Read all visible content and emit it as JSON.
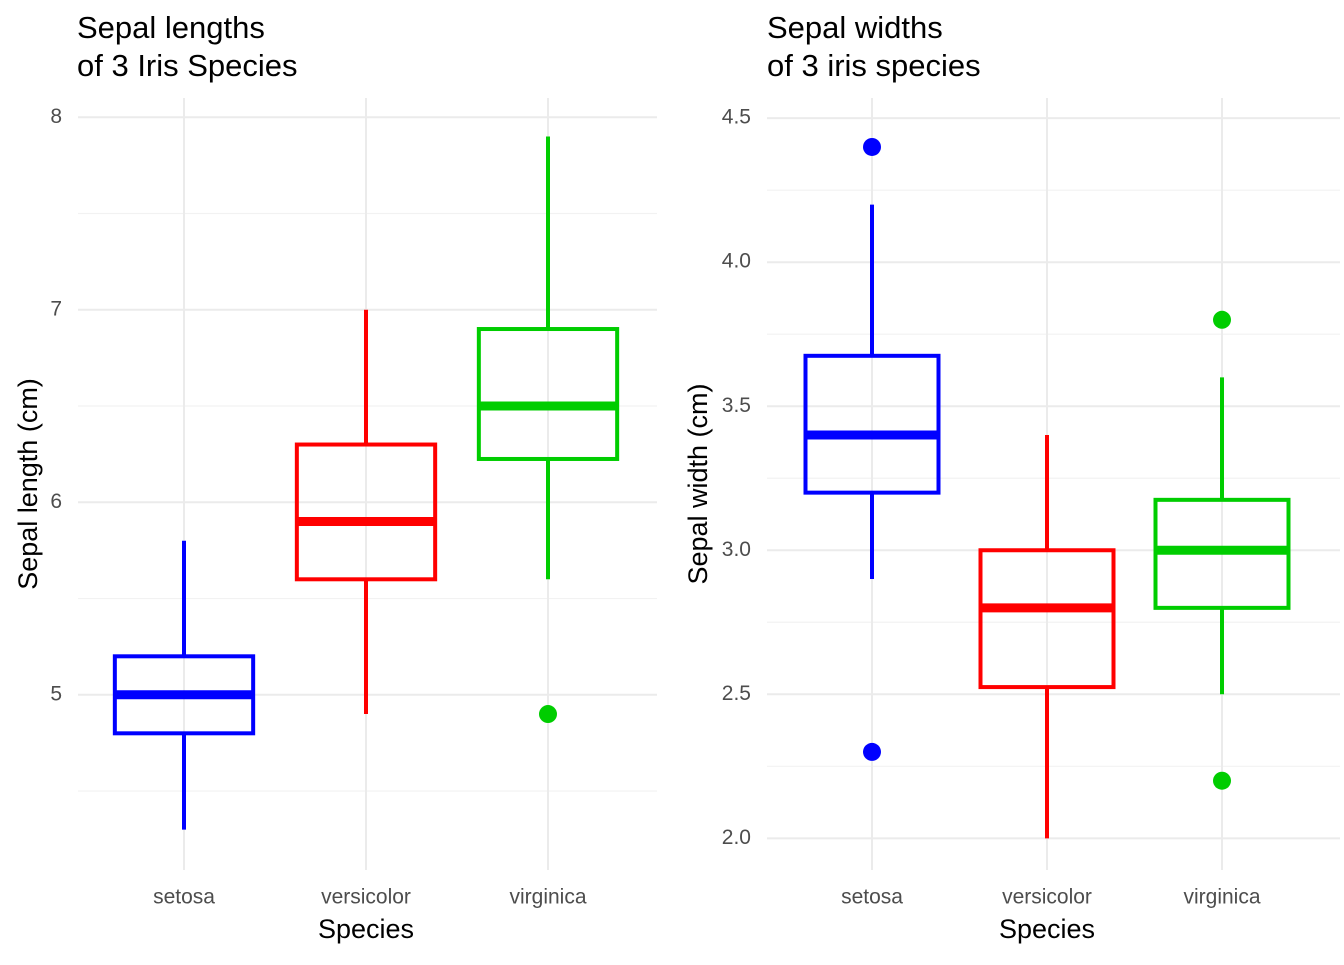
{
  "chart_data": [
    {
      "type": "box",
      "title": [
        "Sepal lengths",
        "of 3 Iris Species"
      ],
      "x_label": "Species",
      "y_label": "Sepal length (cm)",
      "categories": [
        "setosa",
        "versicolor",
        "virginica"
      ],
      "colors": [
        "#0000ff",
        "#ff0000",
        "#00cd00"
      ],
      "boxes": [
        {
          "min": 4.3,
          "q1": 4.8,
          "median": 5.0,
          "q3": 5.2,
          "max": 5.8,
          "outliers": []
        },
        {
          "min": 4.9,
          "q1": 5.6,
          "median": 5.9,
          "q3": 6.3,
          "max": 7.0,
          "outliers": []
        },
        {
          "min": 5.6,
          "q1": 6.225,
          "median": 6.5,
          "q3": 6.9,
          "max": 7.9,
          "outliers": [
            4.9
          ]
        }
      ],
      "ylim": [
        4.09,
        8.1
      ],
      "yticks": [
        5,
        6,
        7,
        8
      ],
      "minor_yticks": [
        4.5,
        5.5,
        6.5,
        7.5
      ],
      "grid": true
    },
    {
      "type": "box",
      "title": [
        "Sepal widths",
        "of 3 iris species"
      ],
      "x_label": "Species",
      "y_label": "Sepal width (cm)",
      "categories": [
        "setosa",
        "versicolor",
        "virginica"
      ],
      "colors": [
        "#0000ff",
        "#ff0000",
        "#00cd00"
      ],
      "boxes": [
        {
          "min": 2.9,
          "q1": 3.2,
          "median": 3.4,
          "q3": 3.675,
          "max": 4.2,
          "outliers": [
            4.4,
            2.3
          ]
        },
        {
          "min": 2.0,
          "q1": 2.525,
          "median": 2.8,
          "q3": 3.0,
          "max": 3.4,
          "outliers": []
        },
        {
          "min": 2.5,
          "q1": 2.8,
          "median": 3.0,
          "q3": 3.175,
          "max": 3.6,
          "outliers": [
            3.8,
            2.2
          ]
        }
      ],
      "ylim": [
        1.89,
        4.57
      ],
      "yticks": [
        {
          "value": 2,
          "label": "2.0"
        },
        2.5,
        {
          "value": 3,
          "label": "3.0"
        },
        3.5,
        {
          "value": 4,
          "label": "4.0"
        },
        4.5
      ],
      "minor_yticks": [
        2.25,
        2.75,
        3.25,
        3.75,
        4.25
      ],
      "grid": true
    }
  ]
}
